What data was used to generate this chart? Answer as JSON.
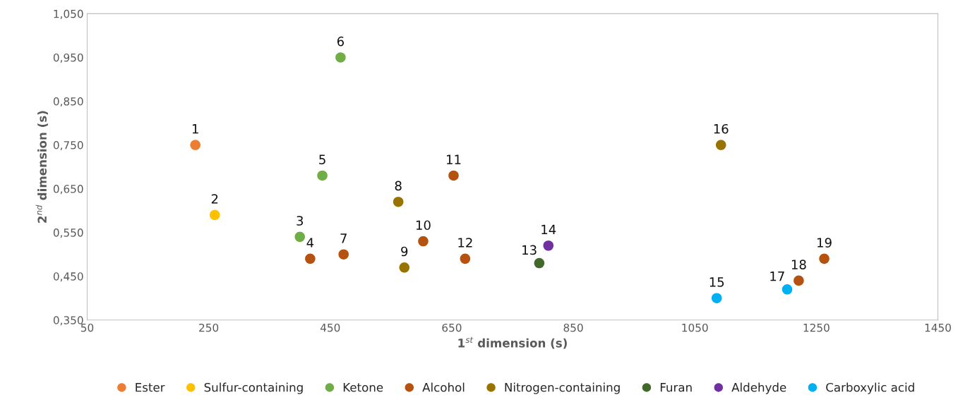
{
  "chart_data": {
    "type": "scatter",
    "xlabel": "1$^{st}$ dimension (s)",
    "ylabel": "2$^{nd}$ dimension (s)",
    "series": [
      {
        "name": "Ester",
        "color": "#ed7d31",
        "x": [
          228
        ],
        "values": [
          0.75
        ]
      },
      {
        "name": "Sulfur-containing",
        "color": "#ffc000",
        "x": [
          260
        ],
        "values": [
          0.59
        ]
      },
      {
        "name": "Ketone",
        "color": "#70ad47",
        "x": [
          400,
          437,
          467
        ],
        "values": [
          0.54,
          0.68,
          0.95
        ]
      },
      {
        "name": "Alcohol",
        "color": "#b5520f",
        "x": [
          417,
          472,
          603,
          653,
          672,
          1221,
          1263
        ],
        "values": [
          0.49,
          0.5,
          0.53,
          0.68,
          0.49,
          0.44,
          0.49
        ]
      },
      {
        "name": "Nitrogen-containing",
        "color": "#997300",
        "x": [
          562,
          572,
          1093
        ],
        "values": [
          0.62,
          0.47,
          0.75
        ]
      },
      {
        "name": "Furan",
        "color": "#43682b",
        "x": [
          794
        ],
        "values": [
          0.48
        ]
      },
      {
        "name": "Aldehyde",
        "color": "#7030a0",
        "x": [
          809
        ],
        "values": [
          0.52
        ]
      },
      {
        "name": "Carboxylic acid",
        "color": "#00b0f0",
        "x": [
          1086,
          1202
        ],
        "values": [
          0.4,
          0.42
        ]
      }
    ],
    "xlim": [
      50,
      1450
    ],
    "xticks": [
      50,
      250,
      450,
      650,
      850,
      1050,
      1250,
      1450
    ],
    "ylim": [
      0.35,
      1.05
    ],
    "yticks": [
      {
        "value": 0.35,
        "label": "0,350"
      },
      {
        "value": 0.45,
        "label": "0,450"
      },
      {
        "value": 0.55,
        "label": "0,550"
      },
      {
        "value": 0.65,
        "label": "0,650"
      },
      {
        "value": 0.75,
        "label": "0,750"
      },
      {
        "value": 0.85,
        "label": "0,850"
      },
      {
        "value": 0.95,
        "label": "0,950"
      },
      {
        "value": 1.05,
        "label": "1,050"
      }
    ],
    "annotations": [
      {
        "text": "1",
        "x": 228,
        "y": 0.75
      },
      {
        "text": "2",
        "x": 260,
        "y": 0.59
      },
      {
        "text": "3",
        "x": 400,
        "y": 0.54
      },
      {
        "text": "4",
        "x": 417,
        "y": 0.49
      },
      {
        "text": "5",
        "x": 437,
        "y": 0.68
      },
      {
        "text": "6",
        "x": 467,
        "y": 0.95
      },
      {
        "text": "7",
        "x": 472,
        "y": 0.5
      },
      {
        "text": "8",
        "x": 562,
        "y": 0.62
      },
      {
        "text": "9",
        "x": 572,
        "y": 0.47
      },
      {
        "text": "10",
        "x": 603,
        "y": 0.53
      },
      {
        "text": "11",
        "x": 653,
        "y": 0.68
      },
      {
        "text": "12",
        "x": 672,
        "y": 0.49
      },
      {
        "text": "13",
        "x": 794,
        "y": 0.48
      },
      {
        "text": "14",
        "x": 809,
        "y": 0.52
      },
      {
        "text": "15",
        "x": 1086,
        "y": 0.4
      },
      {
        "text": "16",
        "x": 1093,
        "y": 0.75
      },
      {
        "text": "17",
        "x": 1202,
        "y": 0.42
      },
      {
        "text": "18",
        "x": 1221,
        "y": 0.44
      },
      {
        "text": "19",
        "x": 1263,
        "y": 0.49
      }
    ],
    "marker": "circle",
    "grid": false,
    "legend": "bottom"
  }
}
